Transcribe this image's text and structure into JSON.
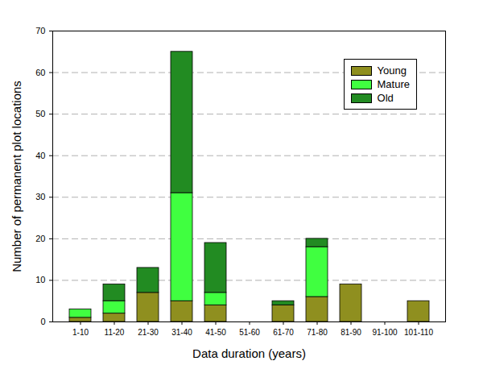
{
  "chart_data": {
    "type": "bar",
    "x_label": "Data duration (years)",
    "y_label": "Number of permanent plot locations",
    "categories": [
      "1-10",
      "11-20",
      "21-30",
      "31-40",
      "41-50",
      "51-60",
      "61-70",
      "71-80",
      "81-90",
      "91-100",
      "101-110"
    ],
    "series": [
      {
        "name": "Young",
        "color": "#8f8f1f",
        "values": [
          1,
          2,
          7,
          5,
          4,
          0,
          4,
          6,
          9,
          0,
          5
        ]
      },
      {
        "name": "Mature",
        "color": "#40ff40",
        "values": [
          2,
          3,
          0,
          26,
          3,
          0,
          0,
          12,
          0,
          0,
          0
        ]
      },
      {
        "name": "Old",
        "color": "#228b22",
        "values": [
          0,
          4,
          6,
          34,
          12,
          0,
          1,
          2,
          0,
          0,
          0
        ]
      }
    ],
    "stacked": true,
    "ylim": [
      0,
      70
    ],
    "yticks": [
      0,
      10,
      20,
      30,
      40,
      50,
      60,
      70
    ],
    "grid": true,
    "legend": "top-right"
  }
}
